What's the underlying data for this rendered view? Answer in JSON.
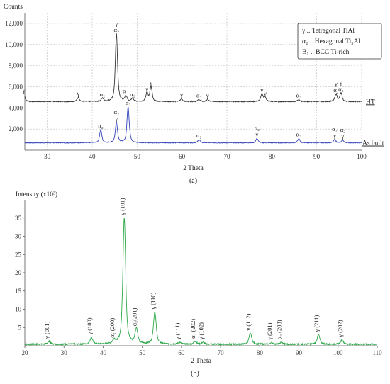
{
  "chart_data": [
    {
      "id": "a",
      "type": "line",
      "panel_label": "(a)",
      "ylabel": "Counts",
      "xlabel": "2 Theta",
      "xlim": [
        25,
        100
      ],
      "ylim": [
        0,
        13000
      ],
      "xticks": [
        30,
        40,
        50,
        60,
        70,
        80,
        90,
        100
      ],
      "yticks": [
        2000,
        4000,
        6000,
        8000,
        10000,
        12000
      ],
      "ytick_labels": [
        "2,000",
        "4,000",
        "6,000",
        "8,000",
        "10,000",
        "12,000"
      ],
      "grid": true,
      "legend_box": [
        "γ .. Tetragonal TiAl",
        "α₂ .. Hexagonal Ti₃Al",
        "B₁ .. BCC Ti-rich"
      ],
      "series": [
        {
          "name": "HT",
          "color": "#333333",
          "baseline": 4600,
          "peaks": [
            {
              "x": 24.8,
              "y": 5300,
              "label": "γ"
            },
            {
              "x": 36.9,
              "y": 5000,
              "label": "γ"
            },
            {
              "x": 42.3,
              "y": 4900,
              "label": "α₂"
            },
            {
              "x": 45.4,
              "y": 11000,
              "label": "γ α₂"
            },
            {
              "x": 47.5,
              "y": 5100,
              "label": "B1"
            },
            {
              "x": 49.0,
              "y": 4900,
              "label": "α₂"
            },
            {
              "x": 52.2,
              "y": 5400,
              "label": "γ"
            },
            {
              "x": 53.1,
              "y": 6000,
              "label": "γ"
            },
            {
              "x": 59.9,
              "y": 4850,
              "label": "γ"
            },
            {
              "x": 63.8,
              "y": 4800,
              "label": "α₂"
            },
            {
              "x": 65.7,
              "y": 4800,
              "label": "γ"
            },
            {
              "x": 77.8,
              "y": 5300,
              "label": "γ"
            },
            {
              "x": 78.5,
              "y": 5000,
              "label": "γ"
            },
            {
              "x": 86.0,
              "y": 4800,
              "label": "α₂"
            },
            {
              "x": 94.3,
              "y": 5300,
              "label": "γ α₂"
            },
            {
              "x": 95.4,
              "y": 5400,
              "label": "γ α₂"
            }
          ]
        },
        {
          "name": "As built",
          "color": "#3344bb",
          "baseline": 700,
          "peaks": [
            {
              "x": 41.9,
              "y": 1900,
              "label": "α₂"
            },
            {
              "x": 45.4,
              "y": 2600,
              "label": "α₂ γ"
            },
            {
              "x": 48.0,
              "y": 4100,
              "label": "α₂"
            },
            {
              "x": 63.8,
              "y": 1000,
              "label": "α₂"
            },
            {
              "x": 76.7,
              "y": 1100,
              "label": "α₂ γ"
            },
            {
              "x": 86.0,
              "y": 1100,
              "label": "α₂"
            },
            {
              "x": 94.0,
              "y": 1000,
              "label": "α₂ γ"
            },
            {
              "x": 95.8,
              "y": 950,
              "label": "α₂ γ"
            }
          ]
        }
      ]
    },
    {
      "id": "b",
      "type": "line",
      "panel_label": "(b)",
      "ylabel": "Intensity (x10³)",
      "xlabel": "2 Theta",
      "xlim": [
        20,
        110
      ],
      "ylim": [
        0,
        40
      ],
      "xticks": [
        20,
        30,
        40,
        50,
        60,
        70,
        80,
        90,
        100,
        110
      ],
      "yticks": [
        5,
        10,
        15,
        20,
        25,
        30,
        35
      ],
      "grid": false,
      "series": [
        {
          "name": "",
          "color": "#2ea84a",
          "baseline": 0.4,
          "peaks": [
            {
              "x": 26.2,
              "y": 1.2,
              "label": "γ (001)"
            },
            {
              "x": 37.0,
              "y": 2.2,
              "label": "γ (100)"
            },
            {
              "x": 42.8,
              "y": 1.4,
              "label": "α₂ (200)"
            },
            {
              "x": 45.4,
              "y": 35.0,
              "label": "γ (101)"
            },
            {
              "x": 48.5,
              "y": 4.6,
              "label": "α₂(201)"
            },
            {
              "x": 53.2,
              "y": 9.2,
              "label": "γ (110)"
            },
            {
              "x": 59.5,
              "y": 0.9,
              "label": "γ (111)"
            },
            {
              "x": 63.5,
              "y": 1.2,
              "label": "α₂ (202)"
            },
            {
              "x": 65.5,
              "y": 0.9,
              "label": "γ (102)"
            },
            {
              "x": 77.6,
              "y": 3.4,
              "label": "γ (112)"
            },
            {
              "x": 83.0,
              "y": 0.8,
              "label": "γ (201)"
            },
            {
              "x": 85.5,
              "y": 0.9,
              "label": "α₂ (203)"
            },
            {
              "x": 95.0,
              "y": 3.0,
              "label": "γ (211)"
            },
            {
              "x": 101.0,
              "y": 1.6,
              "label": "γ (202)"
            }
          ]
        }
      ]
    }
  ]
}
